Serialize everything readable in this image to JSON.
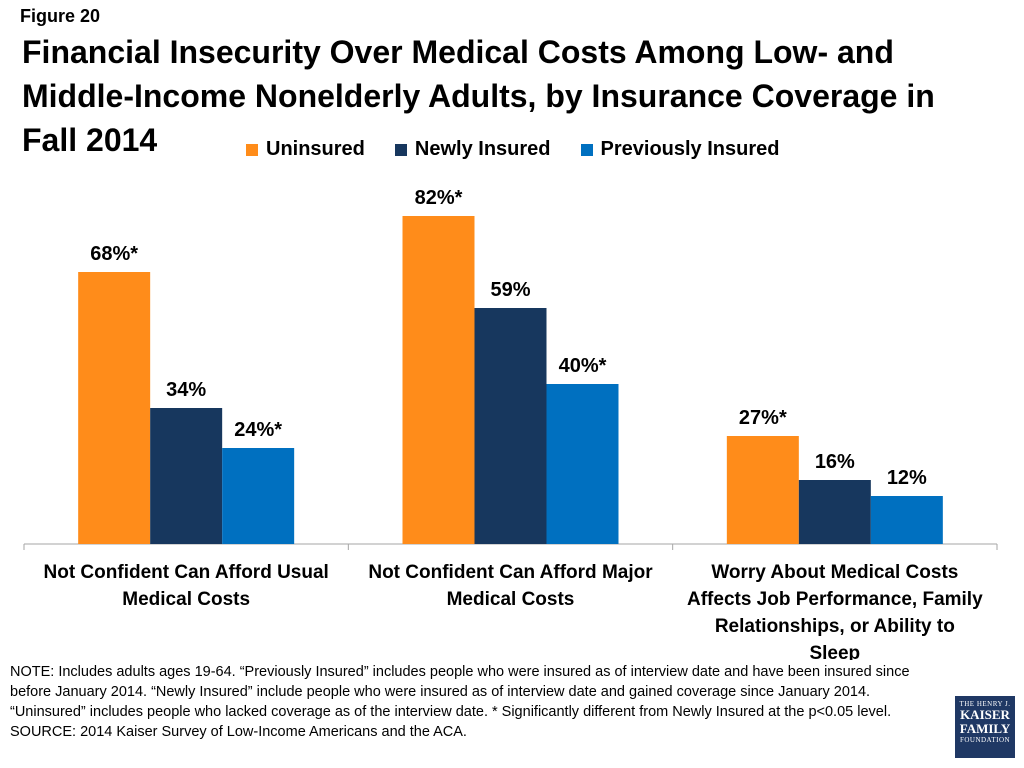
{
  "figure_label": "Figure 20",
  "title": "Financial Insecurity Over Medical Costs Among Low- and Middle-Income Nonelderly Adults, by Insurance Coverage in Fall 2014",
  "colors": {
    "uninsured": "#FF8C1A",
    "newly": "#17375E",
    "previously": "#0070C0"
  },
  "chart_data": {
    "type": "bar",
    "categories": [
      "Not Confident Can Afford Usual Medical Costs",
      "Not Confident Can Afford Major Medical Costs",
      "Worry About Medical Costs Affects Job Performance, Family Relationships, or Ability to Sleep"
    ],
    "series": [
      {
        "name": "Uninsured",
        "values": [
          68,
          82,
          27
        ],
        "labels": [
          "68%*",
          "82%*",
          "27%*"
        ]
      },
      {
        "name": "Newly Insured",
        "values": [
          34,
          59,
          16
        ],
        "labels": [
          "34%",
          "59%",
          "16%"
        ]
      },
      {
        "name": "Previously Insured",
        "values": [
          24,
          40,
          12
        ],
        "labels": [
          "24%*",
          "40%*",
          "12%"
        ]
      }
    ],
    "legend_position": "top",
    "grid": false,
    "ylim": [
      0,
      100
    ]
  },
  "note": "NOTE: Includes adults ages 19-64. “Previously Insured” includes people who were insured as of interview date and have been insured since before January 2014. “Newly Insured” include people who were insured as of interview date and gained coverage since January 2014. “Uninsured” includes people who lacked coverage as of the interview date. * Significantly different from Newly Insured at the p<0.05 level.",
  "source": "SOURCE: 2014 Kaiser Survey of Low-Income Americans and the ACA.",
  "logo": {
    "line1": "THE HENRY J.",
    "line2": "KAISER",
    "line3": "FAMILY",
    "line4": "FOUNDATION"
  }
}
